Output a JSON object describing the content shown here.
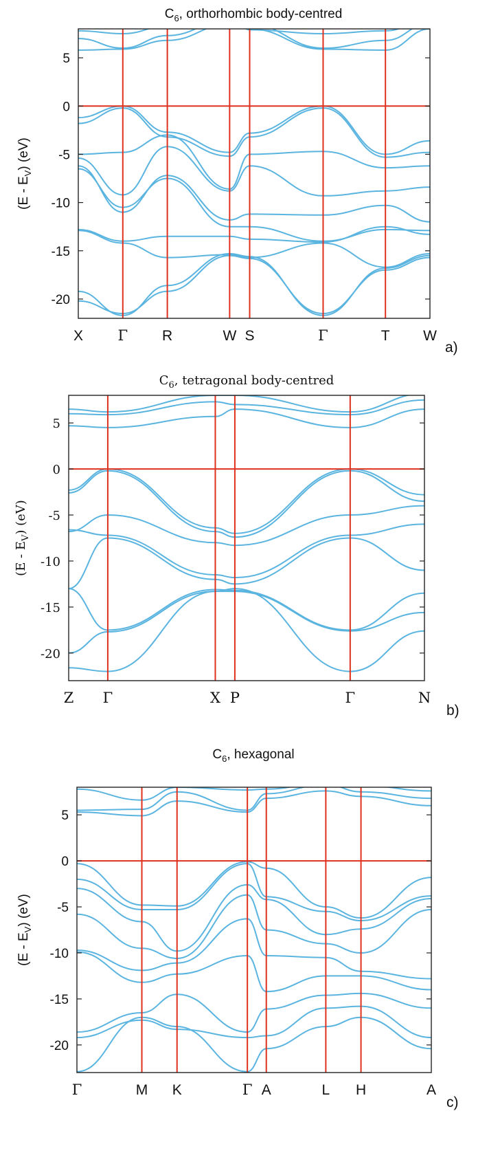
{
  "chart_data": [
    {
      "type": "line",
      "panel_label": "a)",
      "title": "C6, orthorhombic body-centred",
      "title_main": "C",
      "title_sub": "6",
      "title_rest": ", orthorhombic body-centred",
      "ylabel": "(E - EV) (eV)",
      "ylabel_main": "(E - E",
      "ylabel_sub": "V",
      "ylabel_rest": ") (eV)",
      "ylim": [
        -22,
        8
      ],
      "yticks": [
        5,
        0,
        -5,
        -10,
        -15,
        -20
      ],
      "kpoints": [
        {
          "label": "X",
          "x": 0
        },
        {
          "label": "Γ",
          "x": 1
        },
        {
          "label": "R",
          "x": 2
        },
        {
          "label": "W",
          "x": 3.4
        },
        {
          "label": "S",
          "x": 3.85
        },
        {
          "label": "Γ",
          "x": 5.5
        },
        {
          "label": "T",
          "x": 6.9
        },
        {
          "label": "W",
          "x": 7.9
        }
      ],
      "fermi_level": 0,
      "series": [
        {
          "x": [
            0,
            1,
            2,
            3.4,
            3.85,
            5.5,
            6.9,
            7.9
          ],
          "values": [
            -1.2,
            0,
            -2.7,
            -4.8,
            -2.8,
            0,
            -5,
            -3.6
          ]
        },
        {
          "x": [
            0,
            1,
            2,
            3.4,
            3.85,
            5.5,
            6.9,
            7.9
          ],
          "values": [
            -1.8,
            -0.2,
            -3.2,
            -5.2,
            -3.2,
            -0.2,
            -5.3,
            -4.8
          ]
        },
        {
          "x": [
            0,
            1,
            2,
            3.4,
            3.85,
            5.5,
            6.9,
            7.9
          ],
          "values": [
            -5.0,
            -4.8,
            -3.0,
            -8.6,
            -5.0,
            -4.7,
            -6.4,
            -6.2
          ]
        },
        {
          "x": [
            0,
            1,
            2,
            3.4,
            3.85,
            5.5,
            6.9,
            7.9
          ],
          "values": [
            -5.4,
            -9.2,
            -4.2,
            -8.8,
            -6.2,
            -9.3,
            -8.8,
            -8.4
          ]
        },
        {
          "x": [
            0,
            1,
            2,
            3.4,
            3.85,
            5.5,
            6.9,
            7.9
          ],
          "values": [
            -6.2,
            -11.0,
            -7.2,
            -11.8,
            -11.2,
            -11.3,
            -10.3,
            -12.0
          ]
        },
        {
          "x": [
            0,
            1,
            2,
            3.4,
            3.85,
            5.5,
            6.9,
            7.9
          ],
          "values": [
            -6.5,
            -10.5,
            -7.5,
            -12.5,
            -12.5,
            -14.0,
            -12.8,
            -12.9
          ]
        },
        {
          "x": [
            0,
            1,
            2,
            3.4,
            3.85,
            5.5,
            6.9,
            7.9
          ],
          "values": [
            -12.8,
            -14.0,
            -13.5,
            -13.5,
            -13.8,
            -14.1,
            -12.5,
            -13.3
          ]
        },
        {
          "x": [
            0,
            1,
            2,
            3.4,
            3.85,
            5.5,
            6.9,
            7.9
          ],
          "values": [
            -12.9,
            -14.2,
            -15.7,
            -15.4,
            -15.7,
            -14.2,
            -16.7,
            -15.3
          ]
        },
        {
          "x": [
            0,
            1,
            2,
            3.4,
            3.85,
            5.5,
            6.9,
            7.9
          ],
          "values": [
            -19.2,
            -21.7,
            -18.6,
            -15.3,
            -15.6,
            -21.7,
            -16.8,
            -15.5
          ]
        },
        {
          "x": [
            0,
            1,
            2,
            3.4,
            3.85,
            5.5,
            6.9,
            7.9
          ],
          "values": [
            -20.2,
            -21.5,
            -19.2,
            -15.5,
            -15.8,
            -21.5,
            -17.0,
            -15.7
          ]
        },
        {
          "x": [
            0,
            1,
            2,
            3.4,
            3.85,
            5.5,
            6.9,
            7.9
          ],
          "values": [
            5.8,
            5.9,
            6.8,
            8.5,
            8.0,
            5.9,
            5.8,
            8.0
          ]
        },
        {
          "x": [
            0,
            1,
            2,
            3.4,
            3.85,
            5.5,
            6.9,
            7.9
          ],
          "values": [
            7.0,
            6.0,
            7.3,
            9.0,
            8.5,
            6.0,
            6.8,
            8.6
          ]
        },
        {
          "x": [
            0,
            1,
            2,
            3.4,
            3.85,
            5.5,
            6.9,
            7.9
          ],
          "values": [
            7.8,
            7.5,
            8.3,
            9.5,
            7.9,
            7.5,
            7.8,
            9.0
          ]
        }
      ]
    },
    {
      "type": "line",
      "panel_label": "b)",
      "title": "C6, tetragonal body-centred",
      "title_main": "C",
      "title_sub": "6",
      "title_rest": ", tetragonal body-centred",
      "ylabel": "(E - EV) (eV)",
      "ylabel_main": "(E - E",
      "ylabel_sub": "V",
      "ylabel_rest": ") (eV)",
      "ylim": [
        -23,
        8
      ],
      "yticks": [
        5,
        0,
        -5,
        -10,
        -15,
        -20
      ],
      "kpoints": [
        {
          "label": "Z",
          "x": 0
        },
        {
          "label": "Γ",
          "x": 1
        },
        {
          "label": "X",
          "x": 3.75
        },
        {
          "label": "P",
          "x": 4.25
        },
        {
          "label": "Γ",
          "x": 7.2
        },
        {
          "label": "N",
          "x": 9.1
        }
      ],
      "fermi_level": 0,
      "series": [
        {
          "x": [
            0,
            1,
            3.75,
            4.25,
            7.2,
            9.1
          ],
          "values": [
            -2.3,
            0,
            -6.4,
            -7.0,
            0,
            -2.8
          ]
        },
        {
          "x": [
            0,
            1,
            3.75,
            4.25,
            7.2,
            9.1
          ],
          "values": [
            -2.6,
            -0.2,
            -6.8,
            -7.4,
            -0.2,
            -3.5
          ]
        },
        {
          "x": [
            0,
            1,
            3.75,
            4.25,
            7.2,
            9.1
          ],
          "values": [
            -6.8,
            -5.0,
            -8.0,
            -8.3,
            -5.0,
            -4.0
          ]
        },
        {
          "x": [
            0,
            1,
            3.75,
            4.25,
            7.2,
            9.1
          ],
          "values": [
            -6.6,
            -7.2,
            -11.5,
            -11.8,
            -7.2,
            -6.0
          ]
        },
        {
          "x": [
            0,
            1,
            3.75,
            4.25,
            7.2,
            9.1
          ],
          "values": [
            -13.0,
            -7.5,
            -12.0,
            -12.5,
            -7.5,
            -11.0
          ]
        },
        {
          "x": [
            0,
            1,
            3.75,
            4.25,
            7.2,
            9.1
          ],
          "values": [
            -13.0,
            -17.5,
            -13.1,
            -13.2,
            -17.5,
            -13.5
          ]
        },
        {
          "x": [
            0,
            1,
            3.75,
            4.25,
            7.2,
            9.1
          ],
          "values": [
            -20.0,
            -17.7,
            -13.3,
            -13.3,
            -17.6,
            -15.6
          ]
        },
        {
          "x": [
            0,
            1,
            3.75,
            4.25,
            7.2,
            9.1
          ],
          "values": [
            -21.6,
            -22.0,
            -13.3,
            -13.0,
            -22.0,
            -17.6
          ]
        },
        {
          "x": [
            0,
            1,
            3.75,
            4.25,
            7.2,
            9.1
          ],
          "values": [
            4.7,
            4.5,
            5.7,
            6.5,
            4.5,
            6.5
          ]
        },
        {
          "x": [
            0,
            1,
            3.75,
            4.25,
            7.2,
            9.1
          ],
          "values": [
            6.0,
            5.9,
            7.3,
            7.0,
            5.9,
            7.5
          ]
        },
        {
          "x": [
            0,
            1,
            3.75,
            4.25,
            7.2,
            9.1
          ],
          "values": [
            6.5,
            6.2,
            8.0,
            8.0,
            6.2,
            8.2
          ]
        }
      ]
    },
    {
      "type": "line",
      "panel_label": "c)",
      "title": "C6, hexagonal",
      "title_main": "C",
      "title_sub": "6",
      "title_rest": ", hexagonal",
      "ylabel": "(E - EV) (eV)",
      "ylabel_main": "(E - E",
      "ylabel_sub": "V",
      "ylabel_rest": ") (eV)",
      "ylim": [
        -23,
        8
      ],
      "yticks": [
        5,
        0,
        -5,
        -10,
        -15,
        -20
      ],
      "kpoints": [
        {
          "label": "Γ",
          "x": 0
        },
        {
          "label": "M",
          "x": 1.2
        },
        {
          "label": "K",
          "x": 1.85
        },
        {
          "label": "Γ",
          "x": 3.15
        },
        {
          "label": "A",
          "x": 3.5
        },
        {
          "label": "L",
          "x": 4.6
        },
        {
          "label": "H",
          "x": 5.25
        },
        {
          "label": "A",
          "x": 6.55
        }
      ],
      "fermi_level": 0,
      "series": [
        {
          "x": [
            0,
            1.2,
            1.85,
            3.15,
            3.5,
            4.6,
            5.25,
            6.55
          ],
          "values": [
            -0.3,
            -4.8,
            -4.9,
            -0.1,
            -0.8,
            -5.0,
            -6.2,
            -1.8
          ]
        },
        {
          "x": [
            0,
            1.2,
            1.85,
            3.15,
            3.5,
            4.6,
            5.25,
            6.55
          ],
          "values": [
            -2.0,
            -5.3,
            -5.3,
            -0.3,
            -3.9,
            -5.5,
            -6.5,
            -3.8
          ]
        },
        {
          "x": [
            0,
            1.2,
            1.85,
            3.15,
            3.5,
            4.6,
            5.25,
            6.55
          ],
          "values": [
            -3.0,
            -6.6,
            -9.8,
            -2.6,
            -4.2,
            -8.0,
            -7.4,
            -4.1
          ]
        },
        {
          "x": [
            0,
            1.2,
            1.85,
            3.15,
            3.5,
            4.6,
            5.25,
            6.55
          ],
          "values": [
            -5.8,
            -9.5,
            -10.6,
            -3.7,
            -7.5,
            -9.0,
            -10.0,
            -5.3
          ]
        },
        {
          "x": [
            0,
            1.2,
            1.85,
            3.15,
            3.5,
            4.6,
            5.25,
            6.55
          ],
          "values": [
            -9.7,
            -11.9,
            -11.1,
            -6.3,
            -10.3,
            -10.5,
            -12.0,
            -12.8
          ]
        },
        {
          "x": [
            0,
            1.2,
            1.85,
            3.15,
            3.5,
            4.6,
            5.25,
            6.55
          ],
          "values": [
            -9.9,
            -13.2,
            -12.3,
            -10.3,
            -14.2,
            -12.5,
            -12.5,
            -14.0
          ]
        },
        {
          "x": [
            0,
            1.2,
            1.85,
            3.15,
            3.5,
            4.6,
            5.25,
            6.55
          ],
          "values": [
            -18.6,
            -16.5,
            -14.5,
            -18.6,
            -16.1,
            -14.6,
            -14.4,
            -16.0
          ]
        },
        {
          "x": [
            0,
            1.2,
            1.85,
            3.15,
            3.5,
            4.6,
            5.25,
            6.55
          ],
          "values": [
            -19.2,
            -17.3,
            -18.3,
            -19.2,
            -19.0,
            -16.0,
            -15.8,
            -19.2
          ]
        },
        {
          "x": [
            0,
            1.2,
            1.85,
            3.15,
            3.5,
            4.6,
            5.25,
            6.55
          ],
          "values": [
            -22.9,
            -17.0,
            -18.0,
            -22.9,
            -20.4,
            -18.0,
            -17.0,
            -20.4
          ]
        },
        {
          "x": [
            0,
            1.2,
            1.85,
            3.15,
            3.5,
            4.6,
            5.25,
            6.55
          ],
          "values": [
            5.3,
            4.9,
            6.5,
            5.3,
            6.8,
            7.6,
            7.0,
            6.0
          ]
        },
        {
          "x": [
            0,
            1.2,
            1.85,
            3.15,
            3.5,
            4.6,
            5.25,
            6.55
          ],
          "values": [
            5.5,
            5.6,
            7.5,
            5.5,
            7.3,
            8.3,
            7.5,
            6.8
          ]
        },
        {
          "x": [
            0,
            1.2,
            1.85,
            3.15,
            3.5,
            4.6,
            5.25,
            6.55
          ],
          "values": [
            7.8,
            6.6,
            8.0,
            7.7,
            7.8,
            8.5,
            8.2,
            7.6
          ]
        }
      ]
    }
  ]
}
